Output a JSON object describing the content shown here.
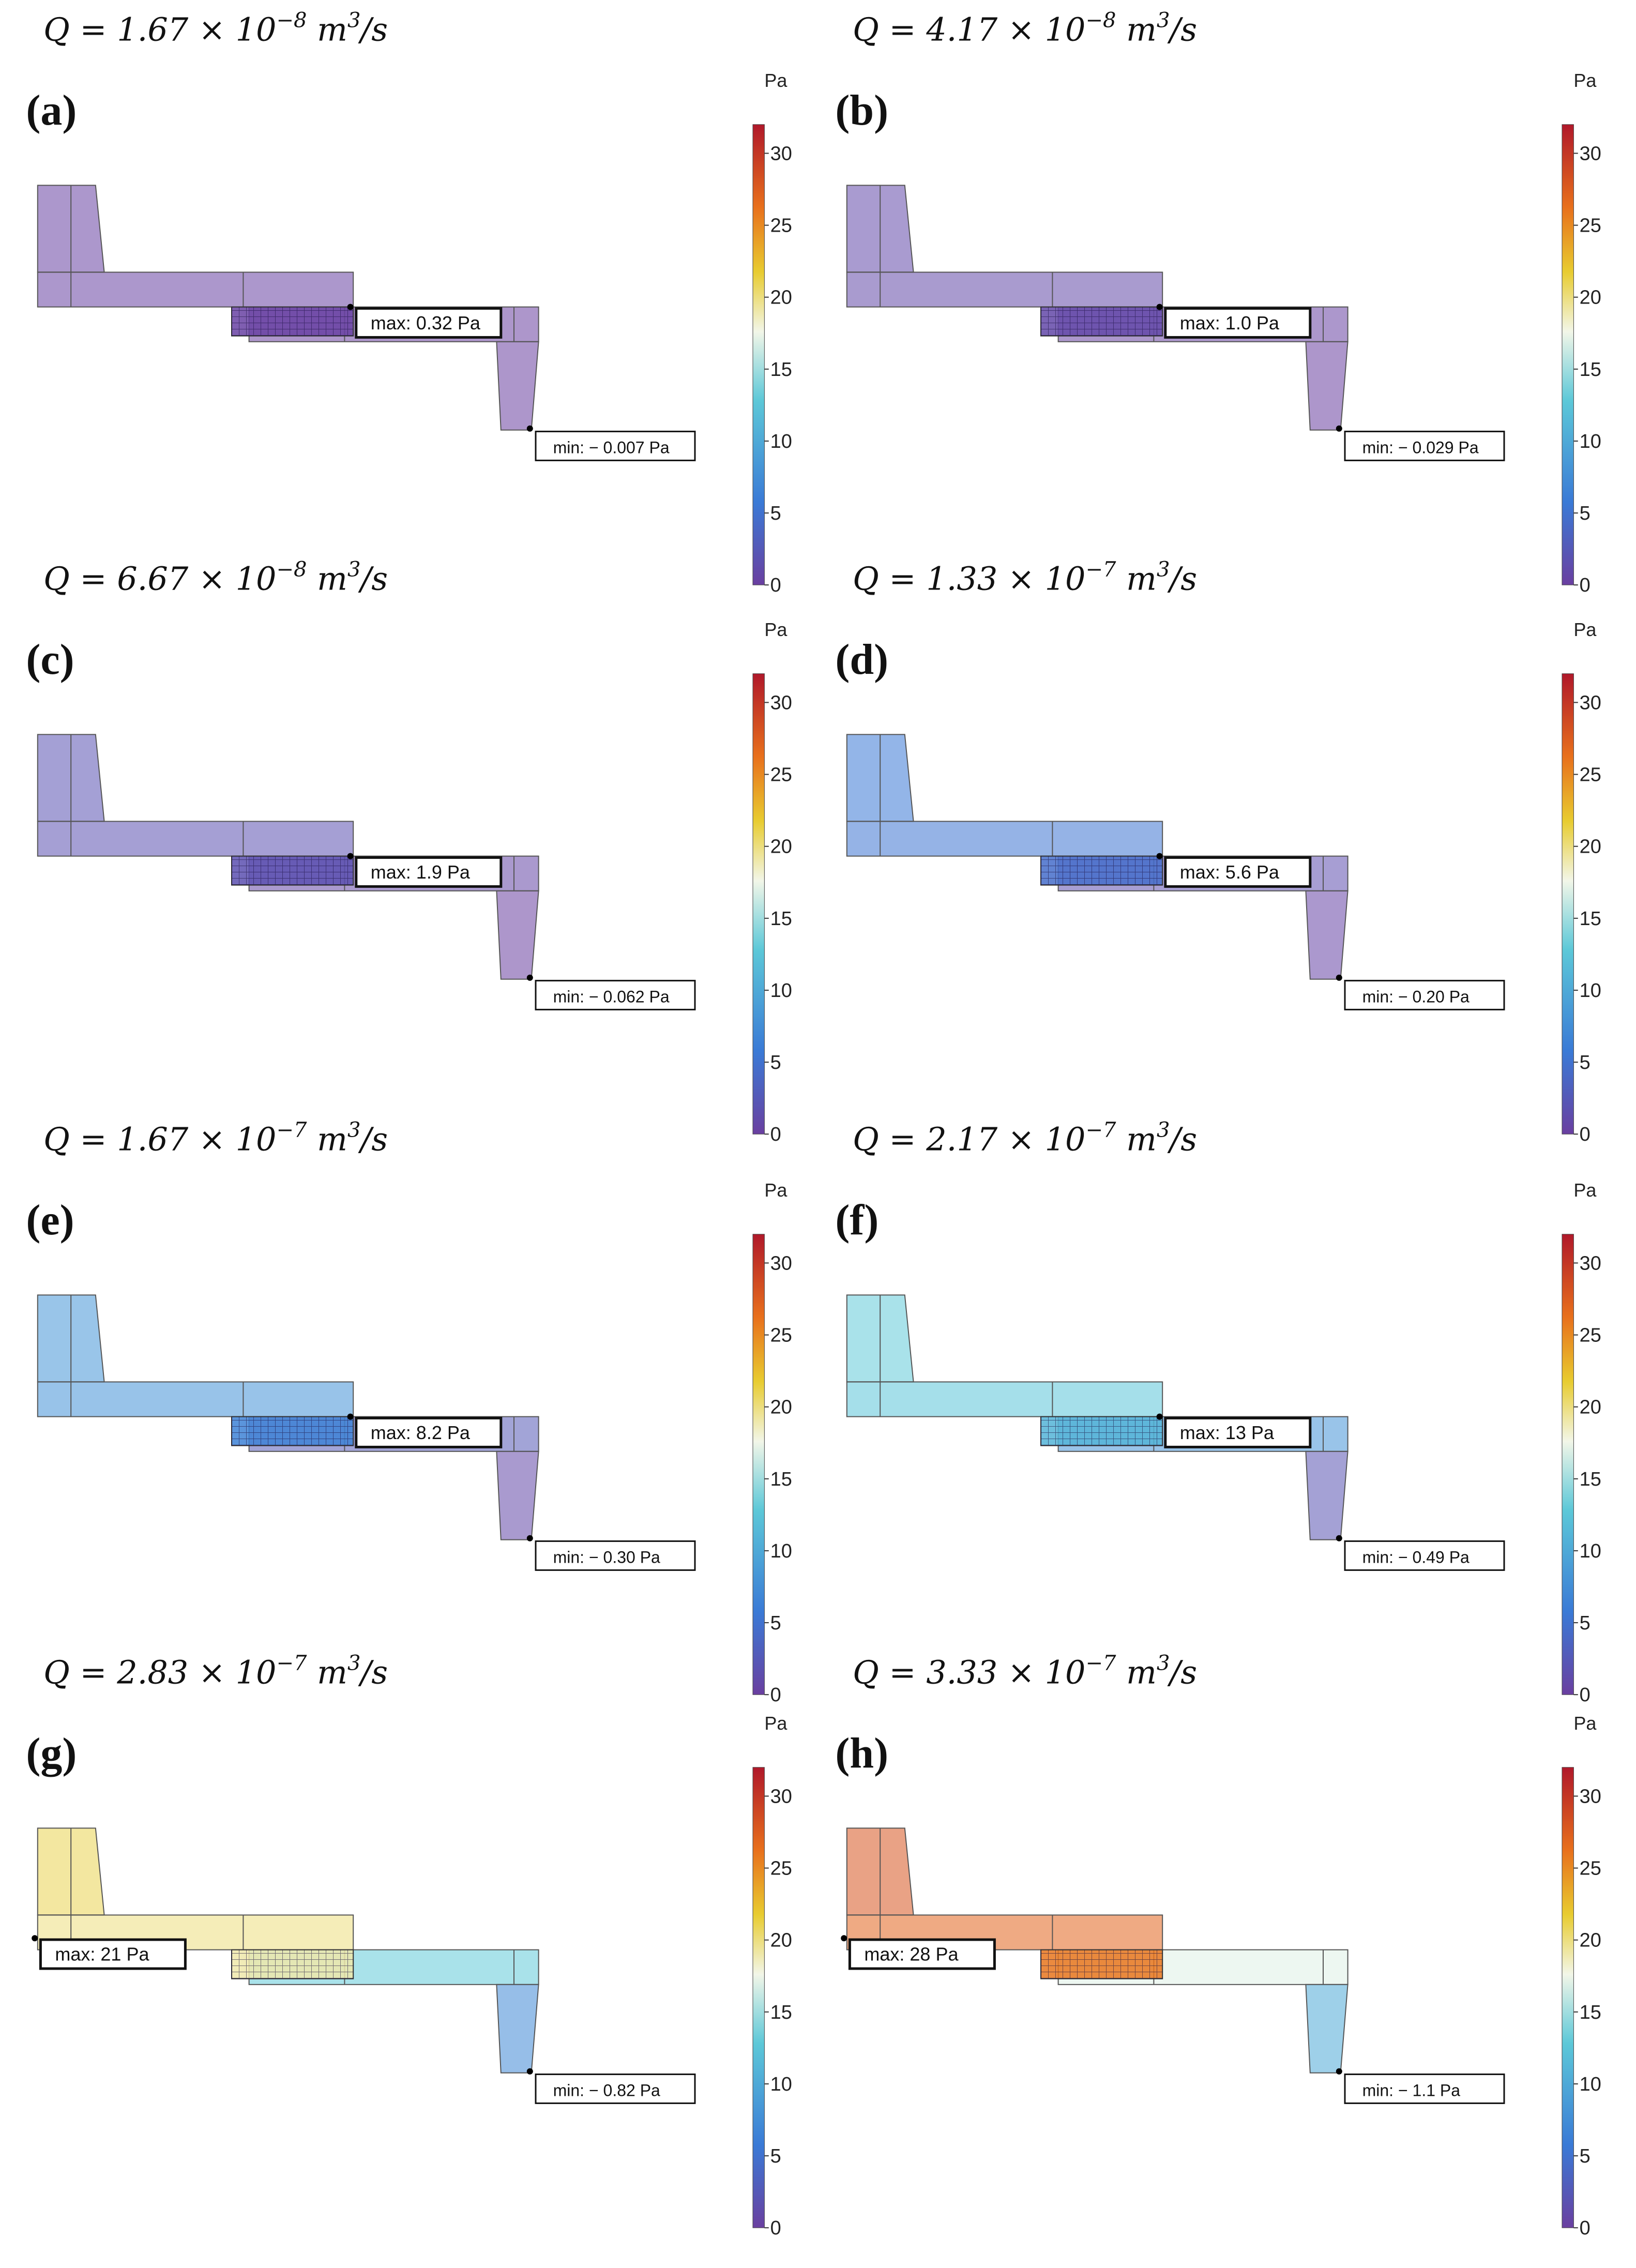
{
  "figure": {
    "colorbar": {
      "unit": "Pa",
      "ticks": [
        "0",
        "5",
        "10",
        "15",
        "20",
        "25",
        "30"
      ],
      "range": [
        0,
        32
      ]
    },
    "colors": {
      "purple": "#6a3fa0",
      "blue": "#3a7ad6",
      "cyan": "#5cc8d8",
      "pale": "#f2f6e8",
      "yellow": "#e8cc30",
      "orange": "#e8701c",
      "red": "#b0182a"
    },
    "panels": [
      {
        "label": "(a)",
        "q": {
          "mant": "1.67",
          "exp": "−8"
        },
        "max_label": "max: 0.32 Pa",
        "min_label": "min: − 0.007 Pa",
        "values": {
          "inlet": 0.32,
          "upper": 0.3,
          "mesh": 0.3,
          "lower": 0.1,
          "outlet": 0.0
        }
      },
      {
        "label": "(b)",
        "q": {
          "mant": "4.17",
          "exp": "−8"
        },
        "max_label": "max: 1.0 Pa",
        "min_label": "min: − 0.029 Pa",
        "values": {
          "inlet": 1.0,
          "upper": 0.9,
          "mesh": 0.9,
          "lower": 0.3,
          "outlet": 0.0
        }
      },
      {
        "label": "(c)",
        "q": {
          "mant": "6.67",
          "exp": "−8"
        },
        "max_label": "max: 1.9 Pa",
        "min_label": "min: − 0.062 Pa",
        "values": {
          "inlet": 1.9,
          "upper": 1.8,
          "mesh": 1.7,
          "lower": 0.6,
          "outlet": 0.0
        }
      },
      {
        "label": "(d)",
        "q": {
          "mant": "1.33",
          "exp": "−7"
        },
        "max_label": "max: 5.6 Pa",
        "min_label": "min: − 0.20 Pa",
        "values": {
          "inlet": 5.6,
          "upper": 5.3,
          "mesh": 4.5,
          "lower": 1.5,
          "outlet": 0.5
        }
      },
      {
        "label": "(e)",
        "q": {
          "mant": "1.67",
          "exp": "−7"
        },
        "max_label": "max: 8.2 Pa",
        "min_label": "min: − 0.30 Pa",
        "values": {
          "inlet": 8.2,
          "upper": 7.8,
          "mesh": 6.5,
          "lower": 2.5,
          "outlet": 0.8
        }
      },
      {
        "label": "(f)",
        "q": {
          "mant": "2.17",
          "exp": "−7"
        },
        "max_label": "max: 13 Pa",
        "min_label": "min: − 0.49 Pa",
        "values": {
          "inlet": 13,
          "upper": 12.5,
          "mesh": 11,
          "lower": 8,
          "outlet": 2
        }
      },
      {
        "label": "(g)",
        "q": {
          "mant": "2.83",
          "exp": "−7"
        },
        "max_label": "max: 21 Pa",
        "min_label": "min: − 0.82 Pa",
        "values": {
          "inlet": 21,
          "upper": 20,
          "mesh": 19,
          "lower": 13,
          "outlet": 7
        }
      },
      {
        "label": "(h)",
        "q": {
          "mant": "3.33",
          "exp": "−7"
        },
        "max_label": "max: 28 Pa",
        "min_label": "min: − 1.1 Pa",
        "values": {
          "inlet": 28,
          "upper": 27,
          "mesh": 26,
          "lower": 17,
          "outlet": 10
        }
      }
    ]
  }
}
